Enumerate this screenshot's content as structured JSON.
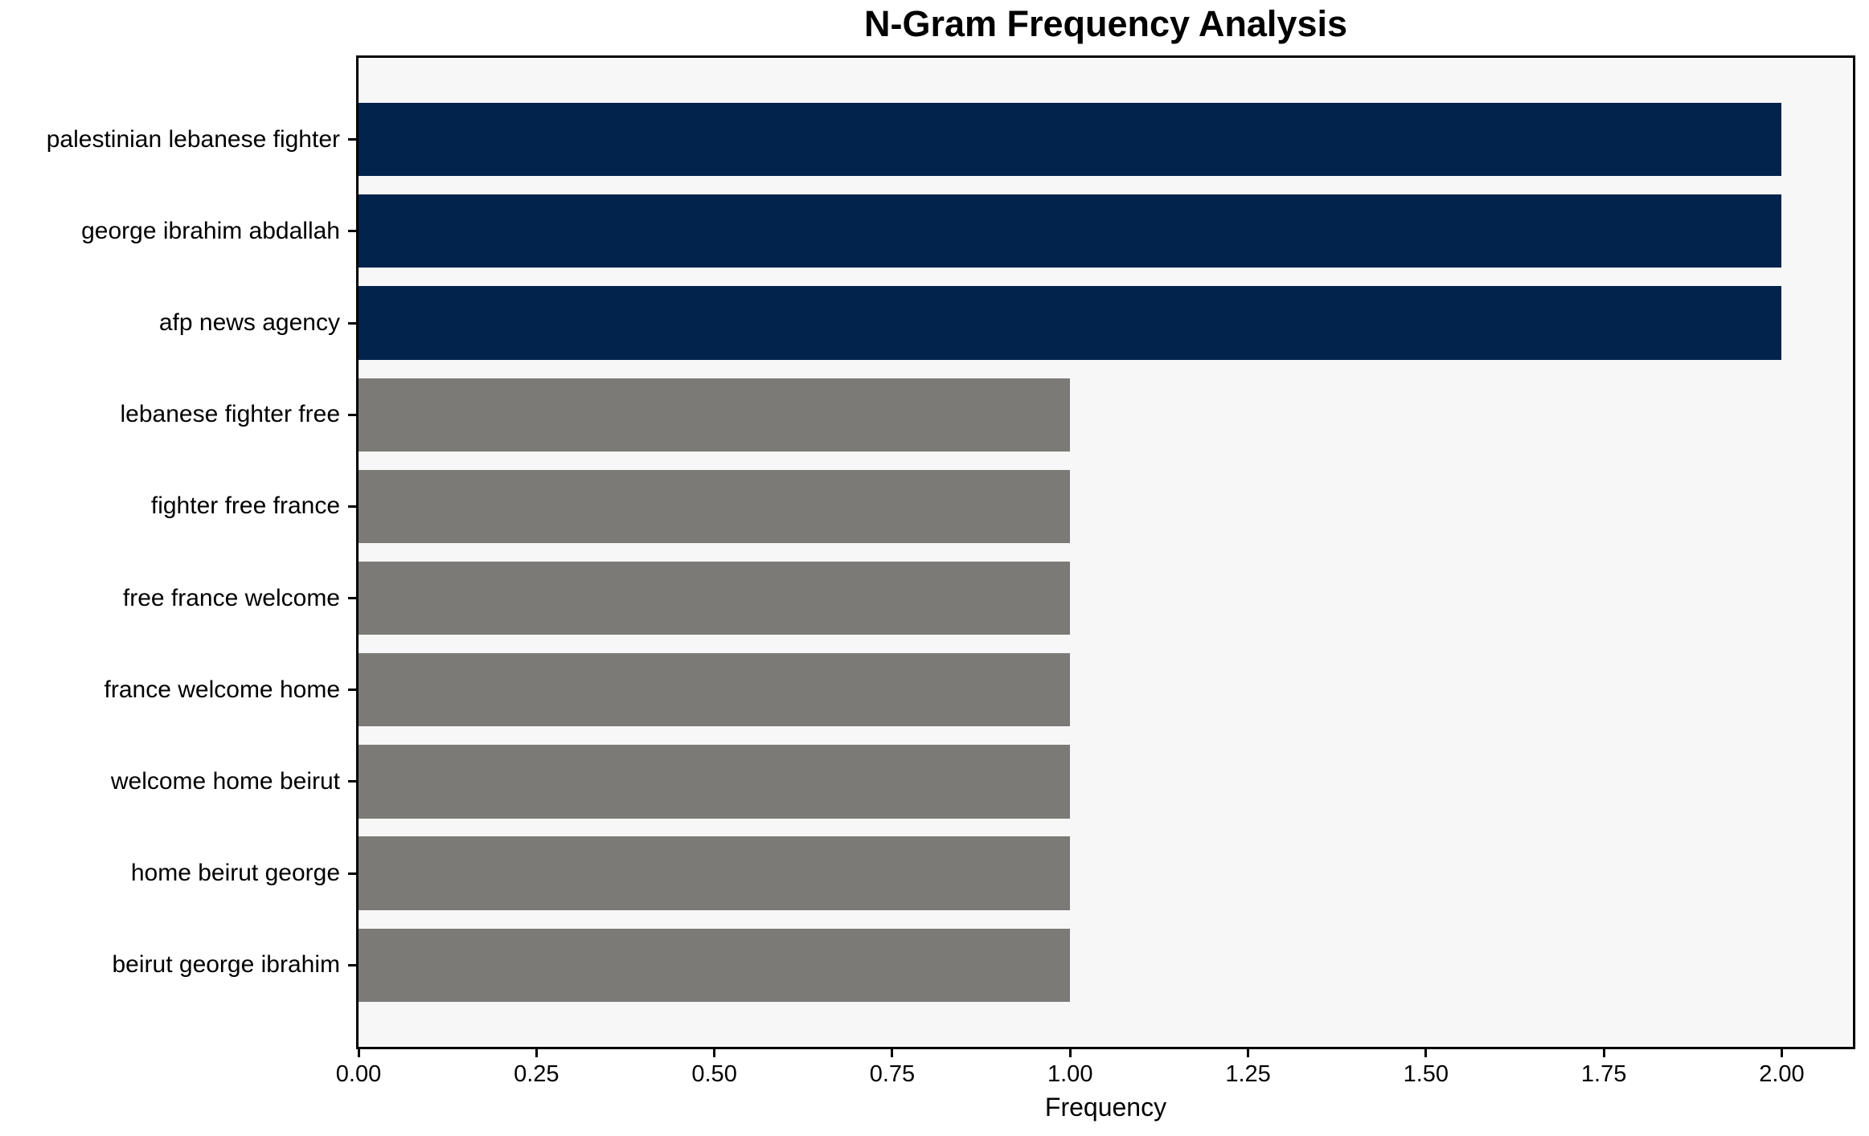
{
  "chart_data": {
    "type": "bar",
    "orientation": "horizontal",
    "title": "N-Gram Frequency Analysis",
    "xlabel": "Frequency",
    "ylabel": "",
    "categories": [
      "palestinian lebanese fighter",
      "george ibrahim abdallah",
      "afp news agency",
      "lebanese fighter free",
      "fighter free france",
      "free france welcome",
      "france welcome home",
      "welcome home beirut",
      "home beirut george",
      "beirut george ibrahim"
    ],
    "values": [
      2,
      2,
      2,
      1,
      1,
      1,
      1,
      1,
      1,
      1
    ],
    "bar_colors": [
      "#02234c",
      "#02234c",
      "#02234c",
      "#7b7a77",
      "#7b7a77",
      "#7b7a77",
      "#7b7a77",
      "#7b7a77",
      "#7b7a77",
      "#7b7a77"
    ],
    "xlim": [
      0,
      2.1
    ],
    "xtick_values": [
      0,
      0.25,
      0.5,
      0.75,
      1.0,
      1.25,
      1.5,
      1.75,
      2.0
    ],
    "xtick_labels": [
      "0.00",
      "0.25",
      "0.50",
      "0.75",
      "1.00",
      "1.25",
      "1.50",
      "1.75",
      "2.00"
    ],
    "grid": false,
    "legend": "none",
    "plot_background": "#f7f7f8",
    "figure_background": "#ffffff",
    "accent_colors": {
      "navy": "#02234c",
      "gray": "#7b7a77"
    }
  }
}
